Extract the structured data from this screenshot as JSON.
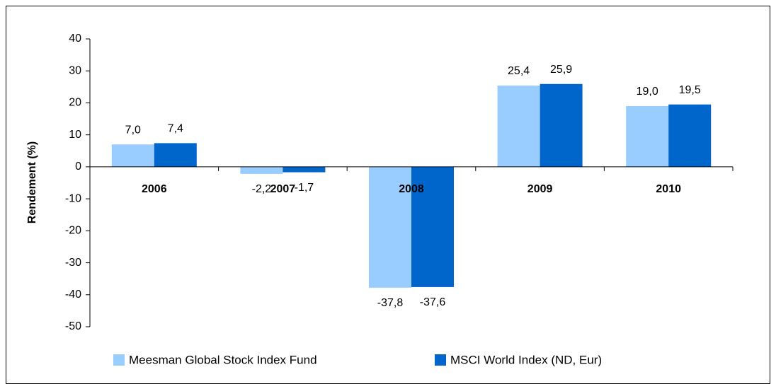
{
  "chart_data": {
    "type": "bar",
    "categories": [
      "2006",
      "2007",
      "2008",
      "2009",
      "2010"
    ],
    "y_label": "Rendement (%)",
    "series": [
      {
        "name": "Meesman Global Stock Index Fund",
        "color": "#99ccff",
        "values": [
          7.0,
          -2.2,
          -37.8,
          25.4,
          19.0
        ],
        "value_labels": [
          "7,0",
          "-2,2",
          "-37,8",
          "25,4",
          "19,0"
        ]
      },
      {
        "name": "MSCI World Index (ND, Eur)",
        "color": "#0066cc",
        "values": [
          7.4,
          -1.7,
          -37.6,
          25.9,
          19.5
        ],
        "value_labels": [
          "7,4",
          "-1,7",
          "-37,6",
          "25,9",
          "19,5"
        ]
      }
    ],
    "ylim": [
      -50,
      40
    ],
    "yticks": [
      -50,
      -40,
      -30,
      -20,
      -10,
      0,
      10,
      20,
      30,
      40
    ],
    "legend": "bottom"
  }
}
